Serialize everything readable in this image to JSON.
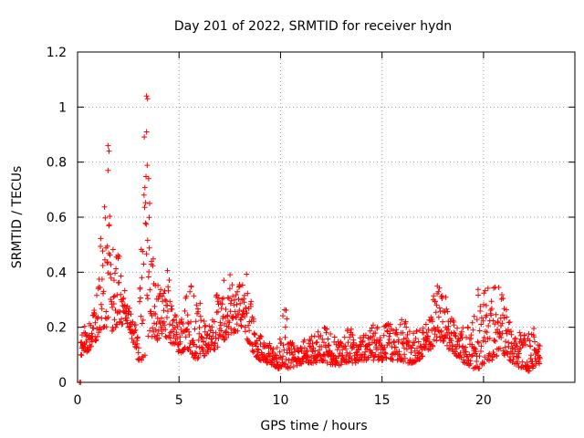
{
  "chart_data": {
    "type": "scatter",
    "title": "Day 201 of 2022, SRMTID for receiver hydn",
    "xlabel": "GPS time / hours",
    "ylabel": "SRMTID / TECUs",
    "xlim": [
      0,
      24.5
    ],
    "ylim": [
      0,
      1.2
    ],
    "xticks": [
      0,
      5,
      10,
      15,
      20
    ],
    "xtick_labels": [
      "0",
      "5",
      "10",
      "15",
      "20"
    ],
    "yticks": [
      0,
      0.2,
      0.4,
      0.6,
      0.8,
      1.0,
      1.2
    ],
    "ytick_labels": [
      "0",
      "0.2",
      "0.4",
      "0.6",
      "0.8",
      "1",
      "1.2"
    ],
    "grid": true,
    "marker": "plus",
    "color": "#ff0000",
    "series": [
      {
        "name": "SRMTID",
        "envelope": {
          "t": [
            0.15,
            0.3,
            0.6,
            0.9,
            1.2,
            1.5,
            1.8,
            2.1,
            2.4,
            2.7,
            3.0,
            3.3,
            3.6,
            3.9,
            4.2,
            4.5,
            4.8,
            5.1,
            5.4,
            5.7,
            6.0,
            6.3,
            6.6,
            6.9,
            7.2,
            7.5,
            7.8,
            8.1,
            8.4,
            8.7,
            9.0,
            9.3,
            9.6,
            9.9,
            10.2,
            10.5,
            10.8,
            11.1,
            11.4,
            11.7,
            12.0,
            12.3,
            12.6,
            12.9,
            13.2,
            13.5,
            13.8,
            14.1,
            14.4,
            14.7,
            15.0,
            15.3,
            15.6,
            15.9,
            16.2,
            16.5,
            16.8,
            17.1,
            17.4,
            17.7,
            18.0,
            18.3,
            18.6,
            18.9,
            19.2,
            19.5,
            19.8,
            20.1,
            20.4,
            20.7,
            21.0,
            21.3,
            21.6,
            21.9,
            22.2,
            22.5,
            22.8
          ],
          "low": [
            0.09,
            0.1,
            0.12,
            0.15,
            0.2,
            0.2,
            0.18,
            0.2,
            0.22,
            0.15,
            0.08,
            0.08,
            0.15,
            0.15,
            0.18,
            0.15,
            0.12,
            0.1,
            0.12,
            0.08,
            0.08,
            0.1,
            0.12,
            0.12,
            0.15,
            0.18,
            0.18,
            0.2,
            0.15,
            0.1,
            0.08,
            0.07,
            0.06,
            0.05,
            0.05,
            0.05,
            0.06,
            0.07,
            0.07,
            0.07,
            0.08,
            0.07,
            0.06,
            0.06,
            0.07,
            0.07,
            0.07,
            0.08,
            0.08,
            0.08,
            0.08,
            0.08,
            0.08,
            0.08,
            0.07,
            0.07,
            0.08,
            0.1,
            0.12,
            0.15,
            0.15,
            0.12,
            0.1,
            0.08,
            0.06,
            0.05,
            0.05,
            0.07,
            0.08,
            0.1,
            0.1,
            0.08,
            0.06,
            0.05,
            0.04,
            0.05,
            0.07
          ],
          "high": [
            0.18,
            0.2,
            0.22,
            0.28,
            0.6,
            0.82,
            0.45,
            0.58,
            0.3,
            0.25,
            0.18,
            0.98,
            0.55,
            0.35,
            0.38,
            0.45,
            0.25,
            0.22,
            0.35,
            0.38,
            0.3,
            0.22,
            0.25,
            0.35,
            0.38,
            0.4,
            0.32,
            0.4,
            0.45,
            0.2,
            0.18,
            0.15,
            0.14,
            0.13,
            0.3,
            0.15,
            0.13,
            0.15,
            0.17,
            0.18,
            0.2,
            0.2,
            0.18,
            0.15,
            0.22,
            0.2,
            0.15,
            0.18,
            0.2,
            0.22,
            0.2,
            0.22,
            0.2,
            0.24,
            0.22,
            0.18,
            0.2,
            0.2,
            0.25,
            0.4,
            0.35,
            0.28,
            0.22,
            0.2,
            0.2,
            0.22,
            0.38,
            0.35,
            0.34,
            0.36,
            0.3,
            0.22,
            0.18,
            0.2,
            0.18,
            0.2,
            0.18
          ]
        },
        "outliers": [
          {
            "x": 3.4,
            "y": 1.04
          },
          {
            "x": 3.45,
            "y": 1.03
          },
          {
            "x": 3.4,
            "y": 0.91
          },
          {
            "x": 1.5,
            "y": 0.86
          },
          {
            "x": 1.55,
            "y": 0.84
          },
          {
            "x": 1.5,
            "y": 0.77
          },
          {
            "x": 3.5,
            "y": 0.74
          },
          {
            "x": 3.55,
            "y": 0.65
          },
          {
            "x": 0.1,
            "y": 0.0
          },
          {
            "x": 0.15,
            "y": 0.0
          }
        ]
      }
    ]
  }
}
